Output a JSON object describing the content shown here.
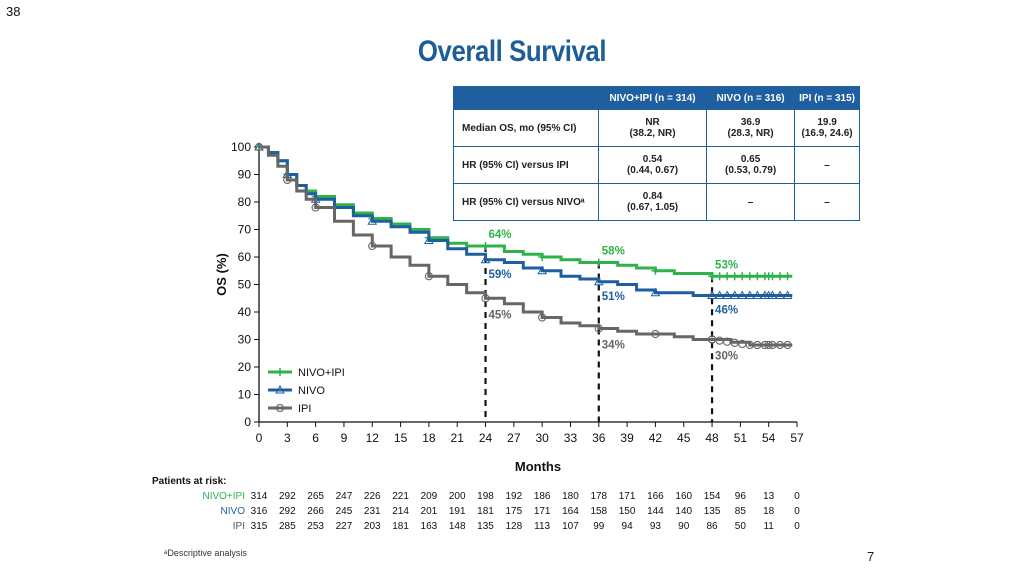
{
  "slide_number_top": "38",
  "title": "Overall Survival",
  "slide_number_bottom": "7",
  "footnote": "ᵃDescriptive analysis",
  "table": {
    "headers": [
      "",
      "NIVO+IPI (n = 314)",
      "NIVO (n = 316)",
      "IPI (n = 315)"
    ],
    "rows": [
      {
        "label": "Median OS, mo (95% CI)",
        "cells": [
          "NR\n(38.2, NR)",
          "36.9\n(28.3, NR)",
          "19.9\n(16.9, 24.6)"
        ]
      },
      {
        "label": "HR (95% CI) versus IPI",
        "cells": [
          "0.54\n(0.44, 0.67)",
          "0.65\n(0.53, 0.79)",
          "–"
        ]
      },
      {
        "label": "HR (95% CI) versus NIVOᵃ",
        "cells": [
          "0.84\n(0.67, 1.05)",
          "–",
          "–"
        ]
      }
    ]
  },
  "chart_data": {
    "type": "line",
    "xlabel": "Months",
    "ylabel": "OS (%)",
    "xlim": [
      0,
      57
    ],
    "ylim": [
      0,
      100
    ],
    "x_ticks": [
      "0",
      "3",
      "6",
      "9",
      "12",
      "15",
      "18",
      "21",
      "24",
      "27",
      "30",
      "33",
      "36",
      "39",
      "42",
      "45",
      "48",
      "51",
      "54",
      "57"
    ],
    "y_ticks": [
      "0",
      "10",
      "20",
      "30",
      "40",
      "50",
      "60",
      "70",
      "80",
      "90",
      "100"
    ],
    "legend_position": "bottom-left",
    "series": [
      {
        "name": "NIVO+IPI",
        "color": "#2db34a",
        "marker": "plus",
        "x": [
          0,
          1,
          2,
          3,
          4,
          5,
          6,
          8,
          10,
          12,
          14,
          16,
          18,
          20,
          22,
          24,
          26,
          28,
          30,
          32,
          34,
          36,
          38,
          40,
          42,
          44,
          46,
          48,
          50,
          52,
          54,
          56
        ],
        "y": [
          100,
          98,
          95,
          90,
          86,
          84,
          82,
          79,
          76,
          74,
          72,
          70,
          67,
          65,
          64,
          64,
          62,
          61,
          60,
          59,
          58,
          58,
          57,
          56,
          55,
          54,
          54,
          53,
          53,
          53,
          53,
          53
        ]
      },
      {
        "name": "NIVO",
        "color": "#1f5fa0",
        "marker": "triangle",
        "x": [
          0,
          1,
          2,
          3,
          4,
          5,
          6,
          8,
          10,
          12,
          14,
          16,
          18,
          20,
          22,
          24,
          26,
          28,
          30,
          32,
          34,
          36,
          38,
          40,
          42,
          44,
          46,
          48,
          50,
          52,
          54,
          56
        ],
        "y": [
          100,
          98,
          95,
          90,
          86,
          83,
          81,
          78,
          75,
          73,
          71,
          69,
          66,
          63,
          61,
          59,
          58,
          56,
          55,
          53,
          52,
          51,
          50,
          48,
          47,
          47,
          46,
          46,
          46,
          46,
          46,
          46
        ]
      },
      {
        "name": "IPI",
        "color": "#666666",
        "marker": "circle",
        "x": [
          0,
          1,
          2,
          3,
          4,
          5,
          6,
          8,
          10,
          12,
          14,
          16,
          18,
          20,
          22,
          24,
          26,
          28,
          30,
          32,
          34,
          36,
          38,
          40,
          42,
          44,
          46,
          48,
          50,
          52,
          54,
          56
        ],
        "y": [
          100,
          97,
          93,
          88,
          84,
          81,
          78,
          73,
          68,
          64,
          60,
          57,
          53,
          50,
          47,
          45,
          43,
          40,
          38,
          36,
          35,
          34,
          33,
          32,
          32,
          31,
          30,
          30,
          29,
          28,
          28,
          28
        ]
      }
    ],
    "annotations": [
      {
        "x": 24,
        "label": "64%",
        "series": "NIVO+IPI"
      },
      {
        "x": 24,
        "label": "59%",
        "series": "NIVO"
      },
      {
        "x": 24,
        "label": "45%",
        "series": "IPI"
      },
      {
        "x": 36,
        "label": "58%",
        "series": "NIVO+IPI"
      },
      {
        "x": 36,
        "label": "51%",
        "series": "NIVO"
      },
      {
        "x": 36,
        "label": "34%",
        "series": "IPI"
      },
      {
        "x": 48,
        "label": "53%",
        "series": "NIVO+IPI"
      },
      {
        "x": 48,
        "label": "46%",
        "series": "NIVO"
      },
      {
        "x": 48,
        "label": "30%",
        "series": "IPI"
      }
    ],
    "dashed_lines_x": [
      24,
      36,
      48
    ],
    "at_risk": {
      "title": "Patients at risk:",
      "rows": [
        {
          "label": "NIVO+IPI",
          "color": "#2db34a",
          "values": [
            "314",
            "292",
            "265",
            "247",
            "226",
            "221",
            "209",
            "200",
            "198",
            "192",
            "186",
            "180",
            "178",
            "171",
            "166",
            "160",
            "154",
            "96",
            "13",
            "0"
          ]
        },
        {
          "label": "NIVO",
          "color": "#1f5fa0",
          "values": [
            "316",
            "292",
            "266",
            "245",
            "231",
            "214",
            "201",
            "191",
            "181",
            "175",
            "171",
            "164",
            "158",
            "150",
            "144",
            "140",
            "135",
            "85",
            "18",
            "0"
          ]
        },
        {
          "label": "IPI",
          "color": "#555555",
          "values": [
            "315",
            "285",
            "253",
            "227",
            "203",
            "181",
            "163",
            "148",
            "135",
            "128",
            "113",
            "107",
            "99",
            "94",
            "93",
            "90",
            "86",
            "50",
            "11",
            "0"
          ]
        }
      ]
    }
  }
}
